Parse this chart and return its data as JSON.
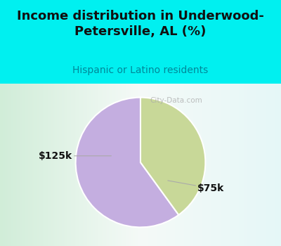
{
  "title": "Income distribution in Underwood-\nPetersville, AL (%)",
  "subtitle": "Hispanic or Latino residents",
  "slices": [
    {
      "label": "$75k",
      "value": 60,
      "color": "#c4aee0"
    },
    {
      "label": "$125k",
      "value": 40,
      "color": "#c8d898"
    }
  ],
  "label_fontsize": 10,
  "title_fontsize": 13,
  "subtitle_fontsize": 10,
  "title_color": "#111111",
  "subtitle_color": "#008899",
  "background_color_top": "#00f0f0",
  "watermark": "City-Data.com",
  "start_angle": 90
}
